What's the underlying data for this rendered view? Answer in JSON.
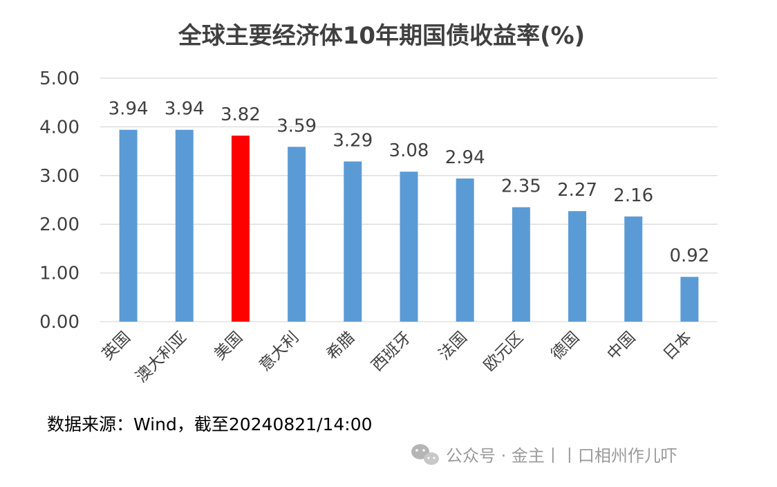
{
  "chart_data": {
    "type": "bar",
    "title": "全球主要经济体10年期国债收益率(%)",
    "categories": [
      "英国",
      "澳大利亚",
      "美国",
      "意大利",
      "希腊",
      "西班牙",
      "法国",
      "欧元区",
      "德国",
      "中国",
      "日本"
    ],
    "values": [
      3.94,
      3.94,
      3.82,
      3.59,
      3.29,
      3.08,
      2.94,
      2.35,
      2.27,
      2.16,
      0.92
    ],
    "value_labels": [
      "3.94",
      "3.94",
      "3.82",
      "3.59",
      "3.29",
      "3.08",
      "2.94",
      "2.35",
      "2.27",
      "2.16",
      "0.92"
    ],
    "ylim": [
      0,
      5
    ],
    "yticks": [
      "0.00",
      "1.00",
      "2.00",
      "3.00",
      "4.00",
      "5.00"
    ],
    "xlabel": "",
    "ylabel": "",
    "grid": true,
    "legend": "none",
    "bar_color": "#5b9bd5",
    "highlight_color": "#ff0000",
    "highlight_category": "美国"
  },
  "source_note": "数据来源：Wind，截至20240821/14:00",
  "watermark": {
    "text": "公众号 · 金主丨丨口相州作儿吓",
    "icon": "wechat-icon"
  }
}
